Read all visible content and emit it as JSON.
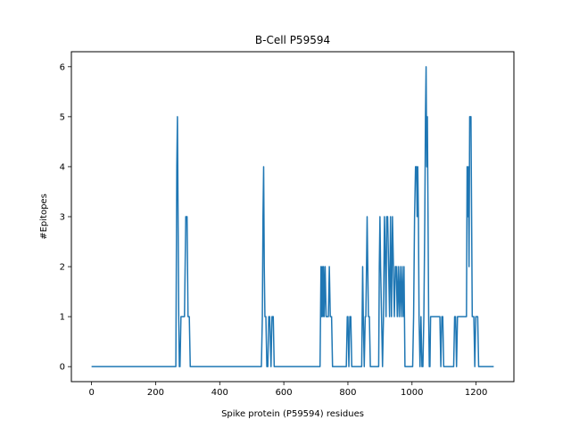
{
  "chart_data": {
    "type": "line",
    "title": "B-Cell P59594",
    "xlabel": "Spike protein (P59594) residues",
    "ylabel": "#Epitopes",
    "xlim": [
      -63,
      1318
    ],
    "ylim": [
      -0.3,
      6.3
    ],
    "xticks": [
      0,
      200,
      400,
      600,
      800,
      1000,
      1200
    ],
    "yticks": [
      0,
      1,
      2,
      3,
      4,
      5,
      6
    ],
    "grid": false,
    "legend": "none",
    "series": [
      {
        "color": "#1f77b4",
        "x": [
          0,
          263,
          266,
          268,
          270,
          272,
          274,
          276,
          279,
          282,
          286,
          290,
          294,
          298,
          301,
          303,
          305,
          308,
          311,
          530,
          533,
          535,
          537,
          539,
          541,
          544,
          547,
          550,
          553,
          556,
          560,
          563,
          567,
          570,
          574,
          577,
          580,
          713,
          716,
          718,
          720,
          722,
          724,
          726,
          729,
          732,
          735,
          739,
          742,
          745,
          749,
          752,
          795,
          798,
          800,
          803,
          806,
          809,
          812,
          843,
          846,
          848,
          851,
          854,
          856,
          858,
          860,
          862,
          864,
          867,
          870,
          896,
          898,
          900,
          902,
          905,
          908,
          911,
          914,
          917,
          919,
          921,
          924,
          927,
          930,
          933,
          936,
          939,
          942,
          945,
          948,
          951,
          954,
          957,
          960,
          963,
          966,
          969,
          972,
          975,
          978,
          1002,
          1005,
          1008,
          1011,
          1014,
          1016,
          1018,
          1020,
          1022,
          1025,
          1028,
          1031,
          1034,
          1037,
          1040,
          1042,
          1044,
          1046,
          1048,
          1050,
          1052,
          1054,
          1056,
          1058,
          1087,
          1090,
          1093,
          1096,
          1099,
          1130,
          1133,
          1136,
          1139,
          1142,
          1170,
          1172,
          1174,
          1176,
          1178,
          1180,
          1182,
          1184,
          1186,
          1188,
          1190,
          1193,
          1196,
          1199,
          1202,
          1205,
          1208,
          1211,
          1214,
          1218,
          1255
        ],
        "y": [
          0,
          0,
          4,
          5,
          3,
          1,
          0,
          0,
          1,
          1,
          1,
          1,
          3,
          3,
          1,
          1,
          1,
          0,
          0,
          0,
          1,
          3,
          4,
          2,
          1,
          1,
          0,
          0,
          1,
          1,
          0,
          1,
          1,
          0,
          0,
          0,
          0,
          0,
          2,
          1,
          2,
          1,
          2,
          1,
          2,
          1,
          1,
          1,
          2,
          1,
          1,
          0,
          0,
          1,
          1,
          0,
          1,
          1,
          0,
          0,
          2,
          1,
          0,
          1,
          1,
          2,
          3,
          2,
          1,
          1,
          0,
          0,
          2,
          3,
          2,
          1,
          0,
          1,
          3,
          2,
          1,
          3,
          3,
          2,
          1,
          3,
          1,
          3,
          2,
          1,
          2,
          2,
          1,
          2,
          1,
          2,
          1,
          2,
          1,
          2,
          0,
          0,
          1,
          3,
          4,
          4,
          3,
          4,
          3,
          1,
          0,
          1,
          0,
          0,
          1,
          3,
          5,
          6,
          4,
          5,
          3,
          1,
          0,
          0,
          1,
          1,
          0,
          1,
          1,
          0,
          0,
          1,
          1,
          0,
          1,
          1,
          4,
          3,
          4,
          2,
          5,
          5,
          5,
          3,
          1,
          1,
          1,
          0,
          1,
          1,
          1,
          0,
          0,
          0,
          0,
          0
        ]
      }
    ]
  }
}
